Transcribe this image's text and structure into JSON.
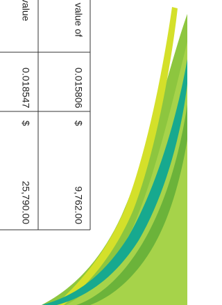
{
  "table": {
    "columns": [
      {
        "header": "value",
        "rate": "0.018547",
        "currency": "$",
        "amount": "25,790.00"
      },
      {
        "header": "value of",
        "rate": "0.015806",
        "currency": "$",
        "amount": "9,762.00"
      }
    ]
  }
}
